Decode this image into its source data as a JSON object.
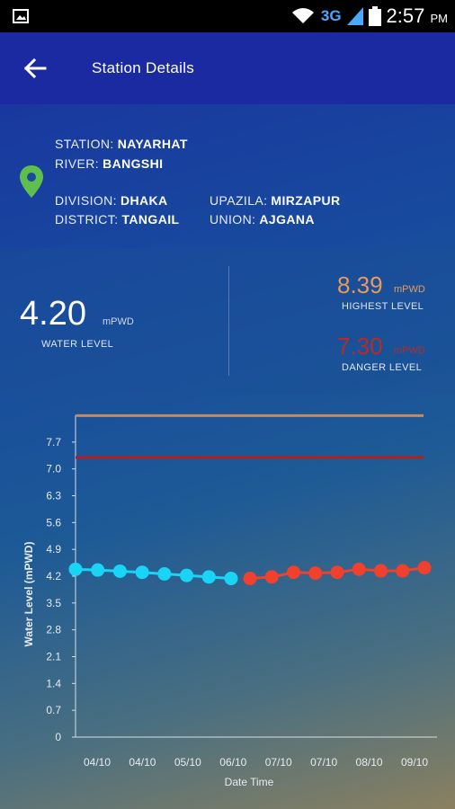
{
  "status_bar": {
    "network": "3G",
    "time": "2:57",
    "ampm": "PM"
  },
  "app_bar": {
    "back_icon": "arrow-left-icon",
    "title": "Station Details"
  },
  "station": {
    "station_label": "STATION:",
    "station_value": "NAYARHAT",
    "river_label": "RIVER:",
    "river_value": "BANGSHI",
    "division_label": "DIVISION:",
    "division_value": "DHAKA",
    "district_label": "DISTRICT:",
    "district_value": "TANGAIL",
    "upazila_label": "UPAZILA:",
    "upazila_value": "MIRZAPUR",
    "union_label": "UNION:",
    "union_value": "AJGANA",
    "pin_icon": "location-pin-icon",
    "pin_color": "#5fbf4e"
  },
  "levels": {
    "water_level_value": "4.20",
    "water_level_unit": "mPWD",
    "water_level_label": "WATER LEVEL",
    "highest_value": "8.39",
    "highest_unit": "mPWD",
    "highest_label": "HIGHEST LEVEL",
    "danger_value": "7.30",
    "danger_unit": "mPWD",
    "danger_label": "DANGER LEVEL",
    "highest_color": "#e79a5a",
    "danger_color": "#b82a2a"
  },
  "chart_data": {
    "type": "line",
    "xlabel": "Date Time",
    "ylabel": "Water Level (mPWD)",
    "ylim": [
      0,
      8.4
    ],
    "yticks": [
      "0",
      "0.7",
      "1.4",
      "2.1",
      "2.8",
      "3.5",
      "4.2",
      "4.9",
      "5.6",
      "6.3",
      "7.0",
      "7.7"
    ],
    "ytick_values": [
      0,
      0.7,
      1.4,
      2.1,
      2.8,
      3.5,
      4.2,
      4.9,
      5.6,
      6.3,
      7.0,
      7.7
    ],
    "xticks": [
      "04/10",
      "04/10",
      "05/10",
      "06/10",
      "07/10",
      "07/10",
      "08/10",
      "09/10"
    ],
    "reference_lines": [
      {
        "value": 8.39,
        "color": "#c98a5a"
      },
      {
        "value": 7.3,
        "color": "#b81c1c"
      }
    ],
    "series": [
      {
        "color": "#19d4f5",
        "values": [
          4.38,
          4.36,
          4.33,
          4.3,
          4.26,
          4.22,
          4.18,
          4.14
        ]
      },
      {
        "color": "#f0402e",
        "values": [
          4.14,
          4.18,
          4.3,
          4.28,
          4.3,
          4.38,
          4.34,
          4.34,
          4.42
        ]
      }
    ]
  }
}
